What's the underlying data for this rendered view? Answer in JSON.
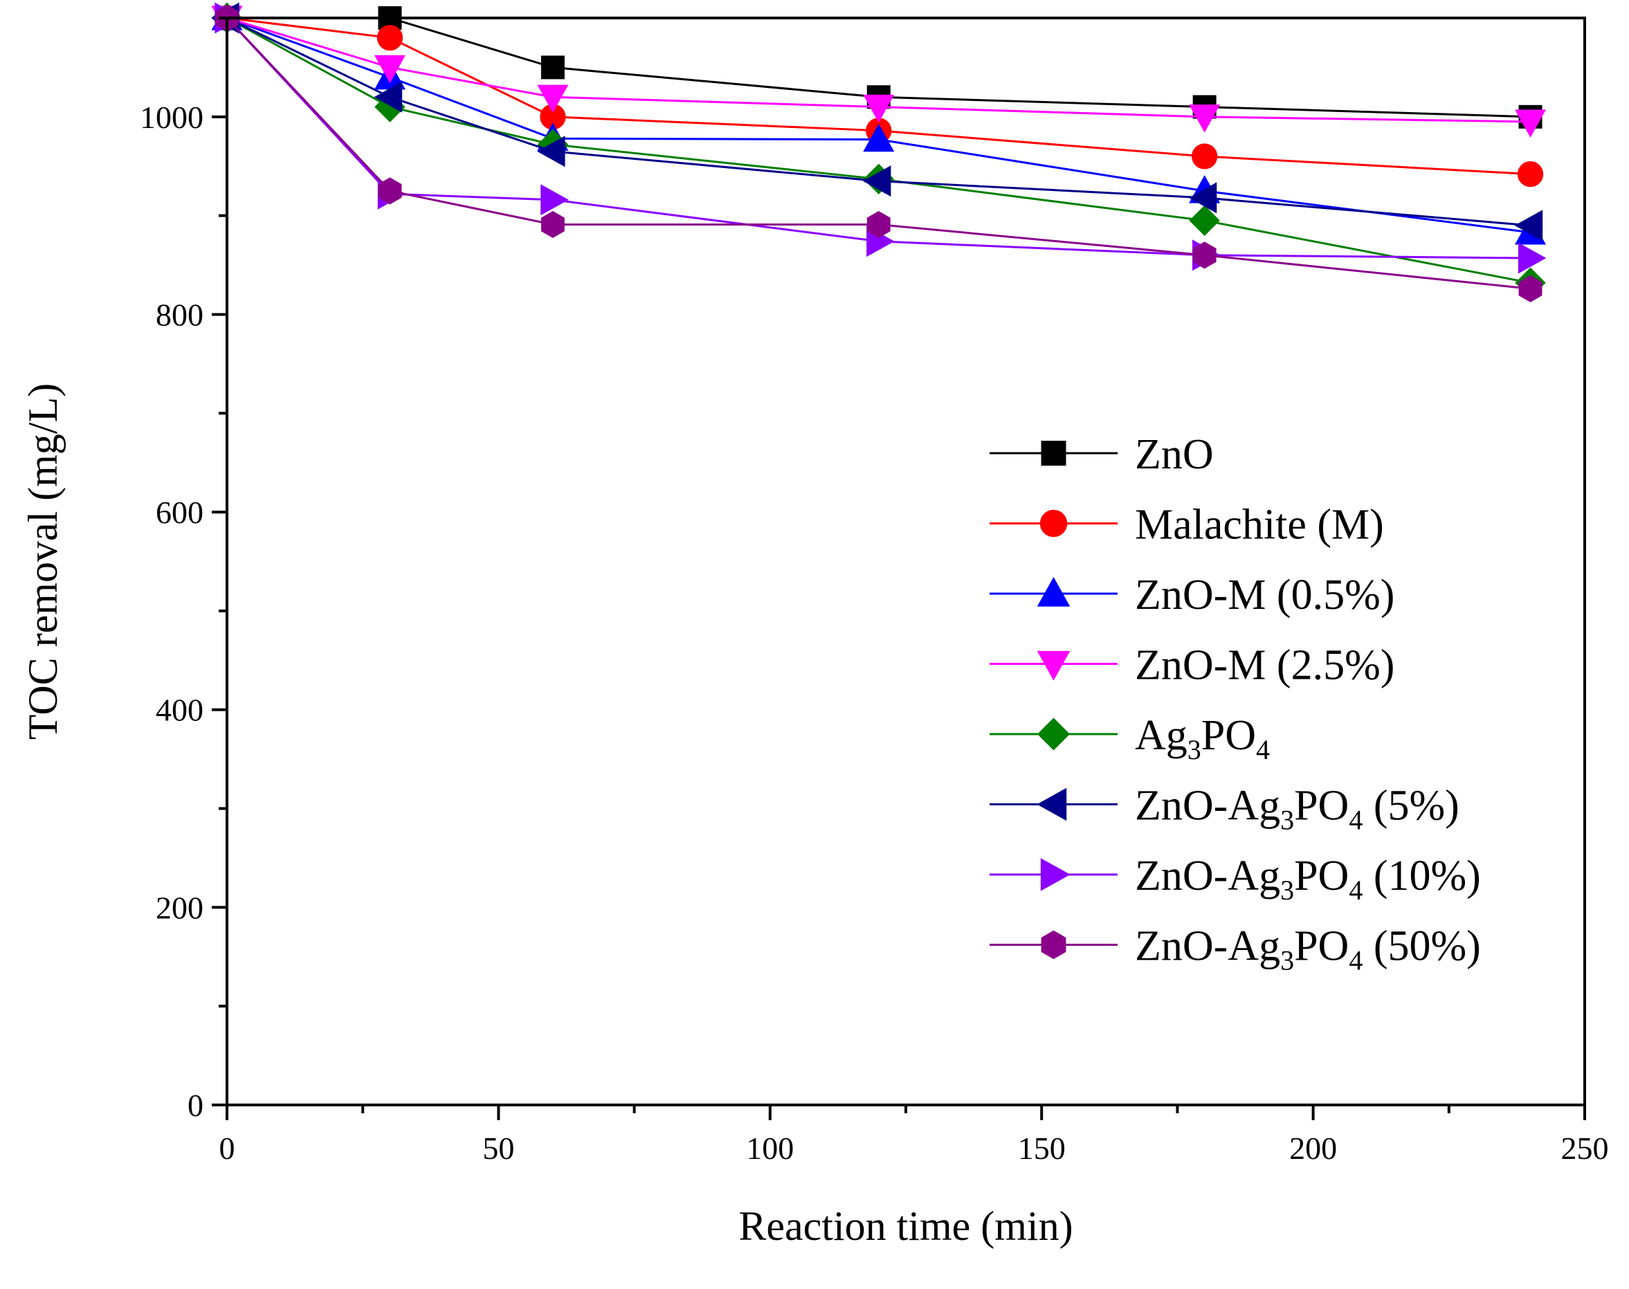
{
  "chart_data": {
    "type": "line",
    "title": "",
    "xlabel": "Reaction time (min)",
    "ylabel": "TOC removal (mg/L)",
    "xlim": [
      0,
      250
    ],
    "ylim": [
      0,
      1100
    ],
    "xticks": [
      0,
      50,
      100,
      150,
      200,
      250
    ],
    "yticks": [
      0,
      200,
      400,
      600,
      800,
      1000
    ],
    "x": [
      0,
      30,
      60,
      120,
      180,
      240
    ],
    "legend_position": "center-right",
    "series": [
      {
        "name": "ZnO",
        "label_parts": [
          [
            "ZnO",
            ""
          ]
        ],
        "color": "#000000",
        "marker": "square",
        "values": [
          1100,
          1100,
          1050,
          1020,
          1010,
          1000
        ]
      },
      {
        "name": "Malachite (M)",
        "label_parts": [
          [
            "Malachite (M)",
            ""
          ]
        ],
        "color": "#ff0000",
        "marker": "circle",
        "values": [
          1100,
          1080,
          1000,
          986,
          960,
          942
        ]
      },
      {
        "name": "ZnO-M (0.5%)",
        "label_parts": [
          [
            "ZnO-M (0.5%)",
            ""
          ]
        ],
        "color": "#0000ff",
        "marker": "triangle-up",
        "values": [
          1100,
          1040,
          978,
          977,
          925,
          883
        ]
      },
      {
        "name": "ZnO-M (2.5%)",
        "label_parts": [
          [
            "ZnO-M (2.5%)",
            ""
          ]
        ],
        "color": "#ff00ff",
        "marker": "triangle-down",
        "values": [
          1100,
          1050,
          1020,
          1010,
          1000,
          995
        ]
      },
      {
        "name": "Ag3PO4",
        "label_parts": [
          [
            "Ag",
            ""
          ],
          [
            "3",
            "sub"
          ],
          [
            "PO",
            ""
          ],
          [
            "4",
            "sub"
          ]
        ],
        "color": "#008000",
        "marker": "diamond",
        "values": [
          1100,
          1010,
          972,
          937,
          895,
          832
        ]
      },
      {
        "name": "ZnO-Ag3PO4 (5%)",
        "label_parts": [
          [
            "ZnO-Ag",
            ""
          ],
          [
            "3",
            "sub"
          ],
          [
            "PO",
            ""
          ],
          [
            "4",
            "sub"
          ],
          [
            " (5%)",
            ""
          ]
        ],
        "color": "#00008b",
        "marker": "triangle-left",
        "values": [
          1100,
          1020,
          965,
          935,
          918,
          890
        ]
      },
      {
        "name": "ZnO-Ag3PO4 (10%)",
        "label_parts": [
          [
            "ZnO-Ag",
            ""
          ],
          [
            "3",
            "sub"
          ],
          [
            "PO",
            ""
          ],
          [
            "4",
            "sub"
          ],
          [
            " (10%)",
            ""
          ]
        ],
        "color": "#8b00ff",
        "marker": "triangle-right",
        "values": [
          1100,
          922,
          916,
          874,
          860,
          857
        ]
      },
      {
        "name": "ZnO-Ag3PO4 (50%)",
        "label_parts": [
          [
            "ZnO-Ag",
            ""
          ],
          [
            "3",
            "sub"
          ],
          [
            "PO",
            ""
          ],
          [
            "4",
            "sub"
          ],
          [
            " (50%)",
            ""
          ]
        ],
        "color": "#8b008b",
        "marker": "hexagon",
        "values": [
          1100,
          925,
          891,
          891,
          860,
          826
        ]
      }
    ]
  }
}
